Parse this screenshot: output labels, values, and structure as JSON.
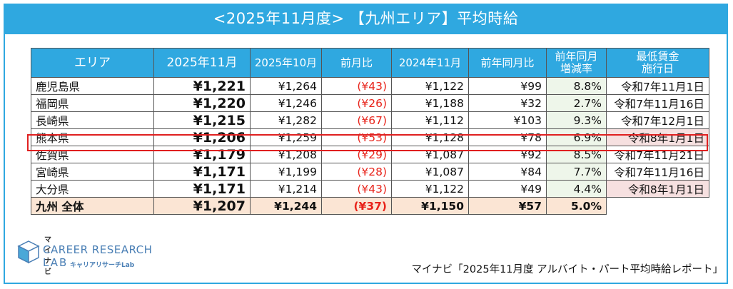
{
  "title": "<2025年11月度> 【九州エリア】平均時給",
  "table": {
    "headers": [
      "エリア",
      "2025年11月",
      "2025年10月",
      "前月比",
      "2024年11月",
      "前年同月比",
      "前年同月\n増減率",
      "最低賃金\n施行日"
    ],
    "rows": [
      {
        "area": "鹿児島県",
        "nov2025": "¥1,221",
        "oct2025": "¥1,264",
        "mom": "(¥43)",
        "nov2024": "¥1,122",
        "yoy": "¥99",
        "yoy_rate": "8.8%",
        "min_wage_date": "令和7年11月1日"
      },
      {
        "area": "福岡県",
        "nov2025": "¥1,220",
        "oct2025": "¥1,246",
        "mom": "(¥26)",
        "nov2024": "¥1,188",
        "yoy": "¥32",
        "yoy_rate": "2.7%",
        "min_wage_date": "令和7年11月16日"
      },
      {
        "area": "長崎県",
        "nov2025": "¥1,215",
        "oct2025": "¥1,282",
        "mom": "(¥67)",
        "nov2024": "¥1,112",
        "yoy": "¥103",
        "yoy_rate": "9.3%",
        "min_wage_date": "令和7年12月1日"
      },
      {
        "area": "熊本県",
        "nov2025": "¥1,206",
        "oct2025": "¥1,259",
        "mom": "(¥53)",
        "nov2024": "¥1,128",
        "yoy": "¥78",
        "yoy_rate": "6.9%",
        "min_wage_date": "令和8年1月1日"
      },
      {
        "area": "佐賀県",
        "nov2025": "¥1,179",
        "oct2025": "¥1,208",
        "mom": "(¥29)",
        "nov2024": "¥1,087",
        "yoy": "¥92",
        "yoy_rate": "8.5%",
        "min_wage_date": "令和7年11月21日"
      },
      {
        "area": "宮崎県",
        "nov2025": "¥1,171",
        "oct2025": "¥1,199",
        "mom": "(¥28)",
        "nov2024": "¥1,087",
        "yoy": "¥84",
        "yoy_rate": "7.7%",
        "min_wage_date": "令和7年11月16日"
      },
      {
        "area": "大分県",
        "nov2025": "¥1,171",
        "oct2025": "¥1,214",
        "mom": "(¥43)",
        "nov2024": "¥1,122",
        "yoy": "¥49",
        "yoy_rate": "4.4%",
        "min_wage_date": "令和8年1月1日"
      }
    ],
    "total": {
      "area": "九州 全体",
      "nov2025": "¥1,207",
      "oct2025": "¥1,244",
      "mom": "(¥37)",
      "nov2024": "¥1,150",
      "yoy": "¥57",
      "yoy_rate": "5.0%"
    }
  },
  "logo": {
    "small_text": "マイナビ",
    "name": "CAREER RESEARCH",
    "lab": "LAB",
    "kana": "キャリアリサーチLab"
  },
  "source": "マイナビ「2025年11月度 アルバイト・パート平均時給レポート」",
  "colors": {
    "accent": "#2fa8e0",
    "negative": "#e8231a",
    "highlight": "#e02020"
  }
}
